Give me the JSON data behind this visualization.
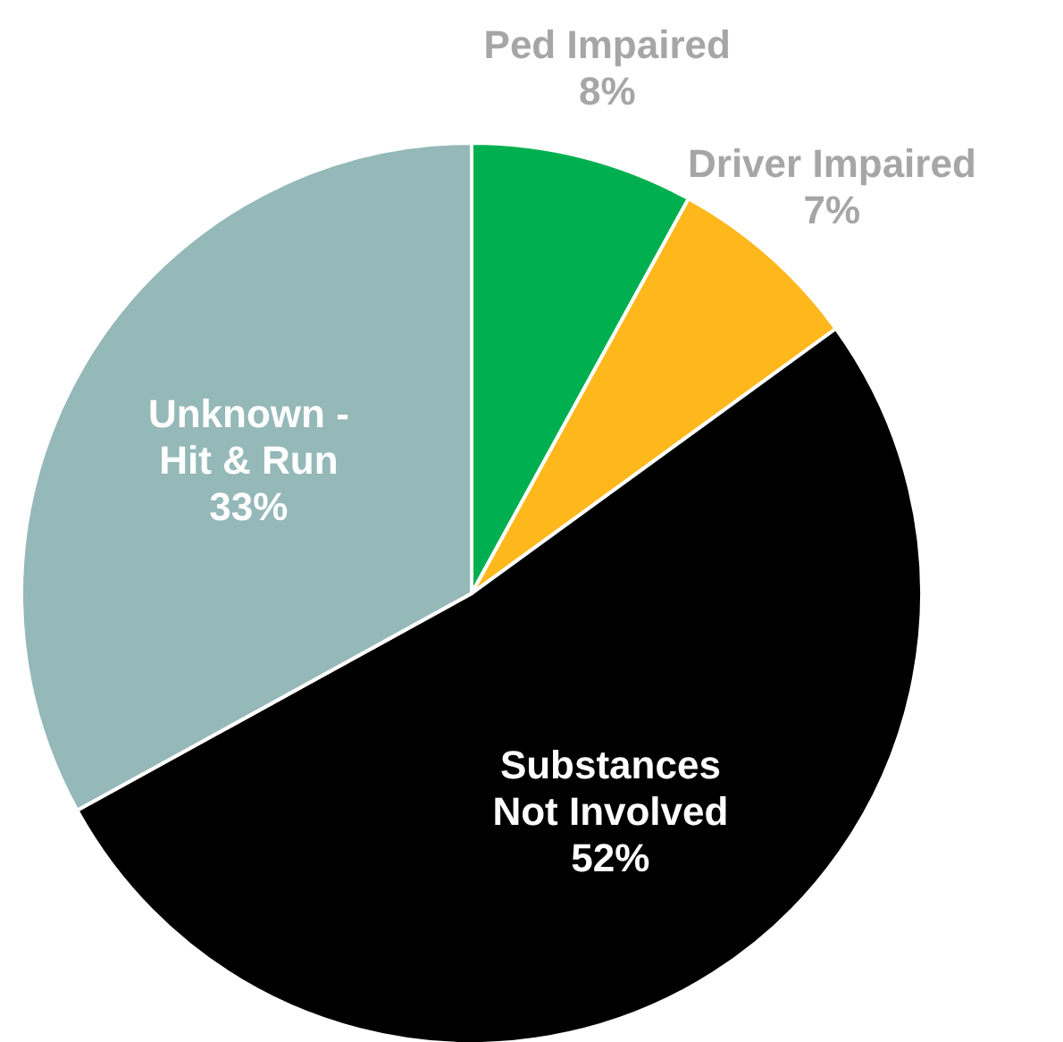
{
  "chart_data": {
    "type": "pie",
    "categories": [
      "Ped Impaired",
      "Driver Impaired",
      "Substances Not Involved",
      "Unknown - Hit & Run"
    ],
    "values": [
      8,
      7,
      52,
      33
    ],
    "value_labels": [
      "8%",
      "7%",
      "52%",
      "33%"
    ],
    "colors": [
      "#00b050",
      "#ffb81c",
      "#000000",
      "#95b8b8"
    ]
  }
}
